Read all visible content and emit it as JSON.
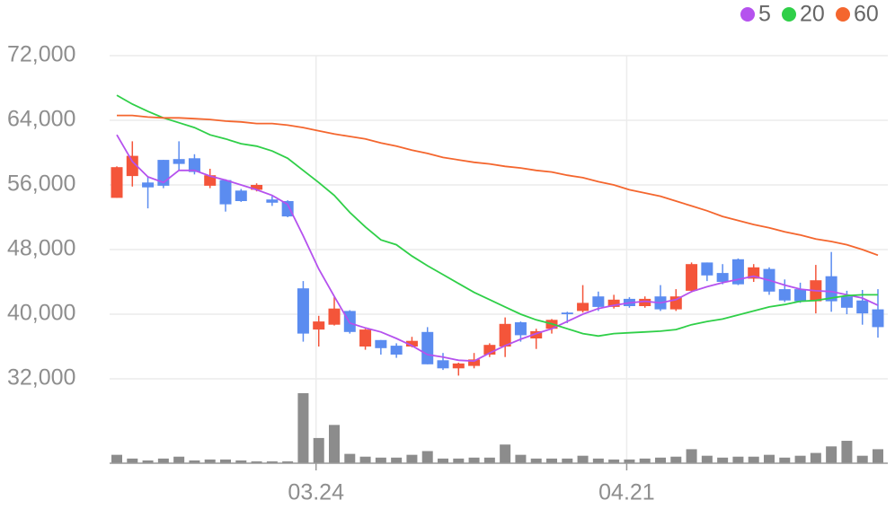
{
  "chart_data": {
    "type": "candlestick",
    "categories": [
      null,
      null,
      null,
      null,
      null,
      null,
      null,
      null,
      null,
      null,
      null,
      null,
      null,
      "03.24",
      null,
      null,
      null,
      null,
      null,
      null,
      null,
      null,
      null,
      null,
      null,
      null,
      null,
      null,
      null,
      null,
      null,
      null,
      null,
      "04.21",
      null,
      null,
      null,
      null,
      null,
      null,
      null,
      null,
      null,
      null,
      null,
      null,
      null,
      null,
      null,
      null
    ],
    "open": [
      54400,
      57100,
      56300,
      59100,
      59200,
      59300,
      55900,
      56600,
      55300,
      55400,
      54200,
      54000,
      43200,
      38100,
      38700,
      40400,
      36000,
      36800,
      36100,
      36000,
      37800,
      34300,
      33300,
      33600,
      35000,
      36000,
      39000,
      37000,
      38200,
      40200,
      40400,
      42200,
      40900,
      41900,
      41000,
      42200,
      40600,
      42900,
      46400,
      45100,
      46800,
      44400,
      45600,
      43100,
      43100,
      41600,
      44700,
      42200,
      41700,
      40600
    ],
    "high": [
      58300,
      61400,
      57000,
      59100,
      61400,
      59800,
      58000,
      56700,
      55500,
      56200,
      54600,
      54100,
      44100,
      39800,
      42100,
      40500,
      38200,
      36800,
      36400,
      37200,
      38400,
      35200,
      34000,
      35200,
      36400,
      39600,
      39100,
      38200,
      39400,
      40300,
      43600,
      42800,
      42400,
      42100,
      42200,
      43600,
      43100,
      46400,
      46400,
      46200,
      46900,
      46200,
      45800,
      44300,
      43900,
      46100,
      47700,
      42900,
      43000,
      43100
    ],
    "low": [
      54400,
      55800,
      53100,
      55600,
      57800,
      57300,
      55600,
      52700,
      53900,
      55200,
      53400,
      52000,
      36600,
      36000,
      38600,
      37600,
      35600,
      35000,
      34600,
      35900,
      33800,
      33100,
      32400,
      33300,
      34700,
      34700,
      36600,
      35700,
      37600,
      38900,
      40200,
      40400,
      40700,
      40800,
      40800,
      40400,
      40400,
      42700,
      44100,
      43700,
      43600,
      44000,
      42400,
      41500,
      41400,
      40100,
      40300,
      40000,
      38700,
      37100
    ],
    "close": [
      58200,
      59600,
      55700,
      55900,
      58600,
      57600,
      57200,
      53600,
      54000,
      56000,
      53800,
      52100,
      37600,
      39100,
      40700,
      37800,
      38100,
      35800,
      35000,
      36700,
      33800,
      33300,
      33900,
      34400,
      36200,
      38800,
      37400,
      37900,
      39300,
      40000,
      41400,
      40900,
      41800,
      41000,
      41900,
      40600,
      42200,
      46200,
      44800,
      44000,
      43700,
      45800,
      42800,
      41700,
      41600,
      44200,
      41600,
      40800,
      40100,
      38400
    ],
    "volume": [
      9,
      5,
      3,
      5,
      7,
      3,
      4,
      4,
      3,
      2,
      2,
      2,
      75,
      27,
      41,
      10,
      7,
      6,
      6,
      9,
      13,
      5,
      5,
      6,
      6,
      20,
      9,
      5,
      5,
      5,
      8,
      5,
      4,
      4,
      5,
      6,
      7,
      15,
      8,
      6,
      7,
      7,
      9,
      6,
      8,
      11,
      18,
      24,
      8,
      15
    ],
    "up_color": "#f4553a",
    "down_color": "#5b8cf0",
    "volume_color": "#8c8c8c",
    "series": [
      {
        "name": "5",
        "color": "#b552ee",
        "values": [
          62200,
          58900,
          57000,
          56300,
          57800,
          57800,
          57100,
          56600,
          56000,
          55400,
          54700,
          53600,
          49700,
          45600,
          42200,
          38900,
          38300,
          37800,
          37000,
          36100,
          35000,
          34700,
          34300,
          34200,
          35200,
          36100,
          36900,
          37600,
          38200,
          39100,
          40000,
          40700,
          41100,
          41400,
          41600,
          41400,
          41800,
          42800,
          43400,
          43900,
          44300,
          44700,
          44200,
          43600,
          43100,
          42900,
          42800,
          42400,
          42000,
          41100
        ]
      },
      {
        "name": "20",
        "color": "#2fcf48",
        "values": [
          67100,
          66000,
          65100,
          64300,
          63700,
          63100,
          62200,
          61700,
          61100,
          60800,
          60200,
          59300,
          57800,
          56300,
          54700,
          52600,
          50800,
          49200,
          48600,
          47200,
          46000,
          44900,
          43800,
          42700,
          41800,
          40900,
          40000,
          39300,
          38800,
          38200,
          37600,
          37300,
          37600,
          37700,
          37800,
          37900,
          38100,
          38700,
          39100,
          39400,
          39900,
          40400,
          40900,
          41200,
          41600,
          41700,
          42000,
          42300,
          42400,
          42400
        ]
      },
      {
        "name": "60",
        "color": "#f4662e",
        "values": [
          64600,
          64600,
          64400,
          64300,
          64300,
          64200,
          64100,
          63900,
          63800,
          63600,
          63600,
          63400,
          63100,
          62700,
          62300,
          62000,
          61700,
          61200,
          60800,
          60300,
          59900,
          59400,
          59100,
          58800,
          58600,
          58300,
          58100,
          57800,
          57600,
          57200,
          56900,
          56400,
          56000,
          55400,
          55000,
          54600,
          54000,
          53400,
          52800,
          52100,
          51600,
          51100,
          50700,
          50200,
          49800,
          49300,
          49000,
          48600,
          48000,
          47300
        ]
      }
    ],
    "ylim": [
      29000,
      74000
    ],
    "yticks": [
      {
        "value": 32000,
        "label": "32,000"
      },
      {
        "value": 40000,
        "label": "40,000"
      },
      {
        "value": 48000,
        "label": "48,000"
      },
      {
        "value": 56000,
        "label": "56,000"
      },
      {
        "value": 64000,
        "label": "64,000"
      },
      {
        "value": 72000,
        "label": "72,000"
      }
    ],
    "grid": true
  }
}
